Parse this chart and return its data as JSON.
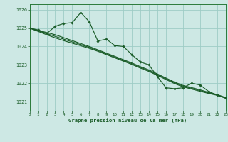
{
  "title": "Graphe pression niveau de la mer (hPa)",
  "x_range": [
    0,
    23
  ],
  "y_range": [
    1020.5,
    1026.3
  ],
  "y_ticks": [
    1021,
    1022,
    1023,
    1024,
    1025,
    1026
  ],
  "x_ticks": [
    0,
    1,
    2,
    3,
    4,
    5,
    6,
    7,
    8,
    9,
    10,
    11,
    12,
    13,
    14,
    15,
    16,
    17,
    18,
    19,
    20,
    21,
    22,
    23
  ],
  "background_color": "#cde8e4",
  "grid_color": "#9eccc5",
  "line_color": "#1a5c28",
  "series_main": [
    1025.0,
    1024.9,
    1024.7,
    1025.1,
    1025.25,
    1025.3,
    1025.85,
    1025.35,
    1024.3,
    1024.4,
    1024.05,
    1024.0,
    1023.55,
    1023.15,
    1023.0,
    1022.35,
    1021.75,
    1021.7,
    1021.75,
    1022.0,
    1021.9,
    1021.55,
    1021.35,
    1021.2
  ],
  "series_smooth1": [
    1025.0,
    1024.88,
    1024.76,
    1024.64,
    1024.48,
    1024.32,
    1024.16,
    1024.0,
    1023.82,
    1023.64,
    1023.46,
    1023.28,
    1023.1,
    1022.9,
    1022.72,
    1022.5,
    1022.28,
    1022.06,
    1021.88,
    1021.76,
    1021.64,
    1021.5,
    1021.38,
    1021.22
  ],
  "series_smooth2": [
    1025.0,
    1024.85,
    1024.7,
    1024.55,
    1024.4,
    1024.25,
    1024.1,
    1023.95,
    1023.78,
    1023.6,
    1023.42,
    1023.24,
    1023.06,
    1022.86,
    1022.68,
    1022.46,
    1022.24,
    1022.02,
    1021.84,
    1021.72,
    1021.6,
    1021.47,
    1021.36,
    1021.2
  ],
  "series_smooth3": [
    1025.0,
    1024.82,
    1024.64,
    1024.47,
    1024.32,
    1024.18,
    1024.04,
    1023.9,
    1023.74,
    1023.56,
    1023.38,
    1023.2,
    1023.02,
    1022.82,
    1022.64,
    1022.42,
    1022.2,
    1021.98,
    1021.8,
    1021.68,
    1021.56,
    1021.44,
    1021.34,
    1021.18
  ]
}
